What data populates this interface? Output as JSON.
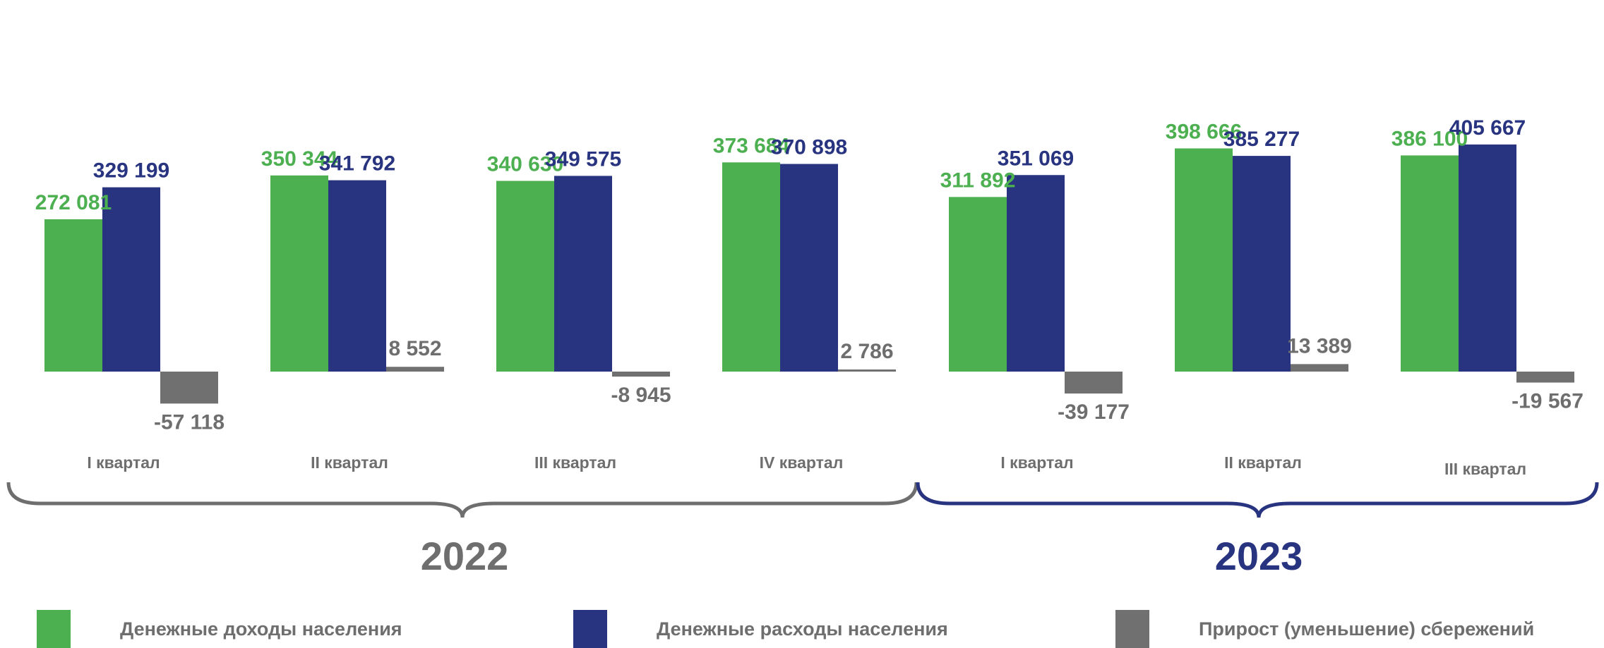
{
  "chart_data": {
    "type": "bar",
    "groups": [
      {
        "year": "2022",
        "quarters": [
          "I квартал",
          "II квартал",
          "III квартал",
          "IV квартал"
        ]
      },
      {
        "year": "2023",
        "quarters": [
          "I квартал",
          "II квартал",
          "III квартал"
        ]
      }
    ],
    "categories": [
      "I квартал",
      "II квартал",
      "III квартал",
      "IV квартал",
      "I квартал",
      "II квартал",
      "III квартал"
    ],
    "series": [
      {
        "name": "Денежные доходы населения",
        "color": "#4caf50",
        "values": [
          272081,
          350344,
          340630,
          373684,
          311892,
          398666,
          386100
        ],
        "labels": [
          "272 081",
          "350 344",
          "340 630",
          "373 684",
          "311 892",
          "398 666",
          "386 100"
        ]
      },
      {
        "name": "Денежные расходы населения",
        "color": "#283480",
        "values": [
          329199,
          341792,
          349575,
          370898,
          351069,
          385277,
          405667
        ],
        "labels": [
          "329 199",
          "341 792",
          "349 575",
          "370 898",
          "351 069",
          "385 277",
          "405 667"
        ]
      },
      {
        "name": "Прирост (уменьшение) сбережений",
        "color": "#707070",
        "values": [
          -57118,
          8552,
          -8945,
          2786,
          -39177,
          13389,
          -19567
        ],
        "labels": [
          "-57 118",
          "8 552",
          "-8 945",
          "2 786",
          "-39 177",
          "13 389",
          "-19 567"
        ]
      }
    ],
    "legend_position": "bottom",
    "grid": false,
    "brace_colors": {
      "2022": "#6e6e6e",
      "2023": "#283480"
    }
  }
}
